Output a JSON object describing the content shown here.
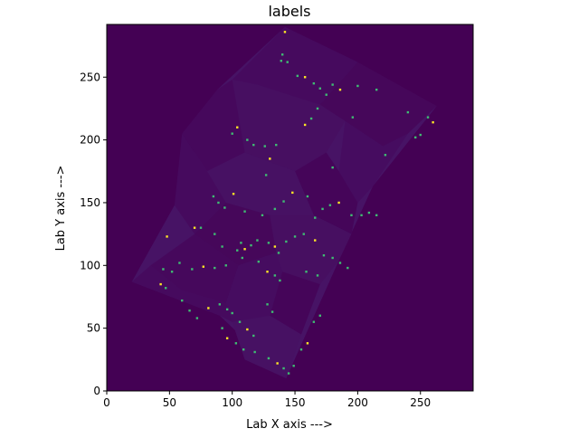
{
  "chart_data": {
    "type": "heatmap",
    "title": "labels",
    "xlabel": "Lab X axis --->",
    "ylabel": "Lab Y axis --->",
    "xlim": [
      0,
      292
    ],
    "ylim": [
      0,
      292
    ],
    "x_ticks": [
      0,
      50,
      100,
      150,
      200,
      250
    ],
    "y_ticks": [
      0,
      50,
      100,
      150,
      200,
      250
    ],
    "origin": "lower",
    "colormap": "viridis",
    "colors": {
      "background": "#440154",
      "grain_dark": "#46085c",
      "grain_mid": "#471365",
      "grain_light": "#482374",
      "boundary_bright": "#3fbc73",
      "boundary_brightest": "#fde725"
    },
    "sample_outline": [
      [
        142,
        290
      ],
      [
        263,
        227
      ],
      [
        212,
        163
      ],
      [
        185,
        104
      ],
      [
        143,
        10
      ],
      [
        90,
        60
      ],
      [
        20,
        87
      ],
      [
        54,
        148
      ],
      [
        88,
        240
      ]
    ],
    "grains": [
      {
        "label_value": 0.06,
        "polygon": [
          [
            142,
            290
          ],
          [
            200,
            262
          ],
          [
            170,
            228
          ],
          [
            120,
            244
          ],
          [
            100,
            248
          ]
        ]
      },
      {
        "label_value": 0.04,
        "polygon": [
          [
            200,
            262
          ],
          [
            263,
            227
          ],
          [
            240,
            205
          ],
          [
            220,
            195
          ],
          [
            190,
            215
          ],
          [
            170,
            228
          ]
        ]
      },
      {
        "label_value": 0.08,
        "polygon": [
          [
            120,
            244
          ],
          [
            170,
            228
          ],
          [
            190,
            215
          ],
          [
            175,
            190
          ],
          [
            150,
            175
          ],
          [
            110,
            190
          ],
          [
            100,
            248
          ]
        ]
      },
      {
        "label_value": 0.05,
        "polygon": [
          [
            100,
            248
          ],
          [
            110,
            190
          ],
          [
            80,
            175
          ],
          [
            60,
            205
          ],
          [
            88,
            240
          ]
        ]
      },
      {
        "label_value": 0.07,
        "polygon": [
          [
            220,
            195
          ],
          [
            240,
            205
          ],
          [
            212,
            163
          ],
          [
            200,
            150
          ],
          [
            185,
            175
          ],
          [
            190,
            215
          ]
        ]
      },
      {
        "label_value": 0.03,
        "polygon": [
          [
            185,
            175
          ],
          [
            200,
            150
          ],
          [
            195,
            125
          ],
          [
            165,
            140
          ],
          [
            150,
            175
          ],
          [
            175,
            190
          ]
        ]
      },
      {
        "label_value": 0.09,
        "polygon": [
          [
            110,
            190
          ],
          [
            150,
            175
          ],
          [
            165,
            140
          ],
          [
            130,
            140
          ],
          [
            95,
            150
          ],
          [
            80,
            175
          ]
        ]
      },
      {
        "label_value": 0.06,
        "polygon": [
          [
            80,
            175
          ],
          [
            95,
            150
          ],
          [
            70,
            125
          ],
          [
            54,
            148
          ],
          [
            60,
            205
          ]
        ]
      },
      {
        "label_value": 0.04,
        "polygon": [
          [
            95,
            150
          ],
          [
            130,
            140
          ],
          [
            135,
            110
          ],
          [
            105,
            100
          ],
          [
            70,
            125
          ]
        ]
      },
      {
        "label_value": 0.08,
        "polygon": [
          [
            130,
            140
          ],
          [
            165,
            140
          ],
          [
            195,
            125
          ],
          [
            185,
            104
          ],
          [
            170,
            85
          ],
          [
            140,
            95
          ],
          [
            135,
            110
          ]
        ]
      },
      {
        "label_value": 0.05,
        "polygon": [
          [
            70,
            125
          ],
          [
            105,
            100
          ],
          [
            95,
            70
          ],
          [
            60,
            80
          ],
          [
            35,
            100
          ]
        ]
      },
      {
        "label_value": 0.07,
        "polygon": [
          [
            105,
            100
          ],
          [
            135,
            110
          ],
          [
            140,
            95
          ],
          [
            130,
            60
          ],
          [
            100,
            55
          ],
          [
            95,
            70
          ]
        ]
      },
      {
        "label_value": 0.03,
        "polygon": [
          [
            140,
            95
          ],
          [
            170,
            85
          ],
          [
            155,
            45
          ],
          [
            130,
            60
          ]
        ]
      },
      {
        "label_value": 0.09,
        "polygon": [
          [
            130,
            60
          ],
          [
            155,
            45
          ],
          [
            143,
            10
          ],
          [
            110,
            25
          ],
          [
            100,
            55
          ]
        ]
      },
      {
        "label_value": 0.06,
        "polygon": [
          [
            60,
            80
          ],
          [
            95,
            70
          ],
          [
            100,
            55
          ],
          [
            90,
            60
          ],
          [
            20,
            87
          ],
          [
            35,
            100
          ]
        ]
      }
    ],
    "bright_pixels": [
      [
        142,
        286
      ],
      [
        140,
        268
      ],
      [
        139,
        263
      ],
      [
        144,
        262
      ],
      [
        152,
        251
      ],
      [
        158,
        250
      ],
      [
        165,
        245
      ],
      [
        170,
        241
      ],
      [
        175,
        236
      ],
      [
        180,
        244
      ],
      [
        186,
        240
      ],
      [
        200,
        243
      ],
      [
        215,
        240
      ],
      [
        240,
        222
      ],
      [
        256,
        218
      ],
      [
        260,
        214
      ],
      [
        250,
        204
      ],
      [
        246,
        202
      ],
      [
        222,
        188
      ],
      [
        180,
        178
      ],
      [
        158,
        212
      ],
      [
        163,
        217
      ],
      [
        168,
        225
      ],
      [
        196,
        218
      ],
      [
        100,
        205
      ],
      [
        104,
        210
      ],
      [
        112,
        200
      ],
      [
        117,
        196
      ],
      [
        126,
        195
      ],
      [
        135,
        196
      ],
      [
        130,
        185
      ],
      [
        127,
        172
      ],
      [
        85,
        155
      ],
      [
        89,
        150
      ],
      [
        94,
        146
      ],
      [
        101,
        157
      ],
      [
        110,
        143
      ],
      [
        124,
        140
      ],
      [
        134,
        145
      ],
      [
        141,
        151
      ],
      [
        148,
        158
      ],
      [
        160,
        155
      ],
      [
        166,
        138
      ],
      [
        172,
        145
      ],
      [
        178,
        148
      ],
      [
        185,
        150
      ],
      [
        195,
        140
      ],
      [
        203,
        140
      ],
      [
        209,
        142
      ],
      [
        215,
        140
      ],
      [
        70,
        130
      ],
      [
        75,
        130
      ],
      [
        86,
        125
      ],
      [
        92,
        115
      ],
      [
        104,
        112
      ],
      [
        110,
        113
      ],
      [
        115,
        116
      ],
      [
        107,
        118
      ],
      [
        120,
        120
      ],
      [
        129,
        118
      ],
      [
        134,
        115
      ],
      [
        137,
        110
      ],
      [
        143,
        119
      ],
      [
        150,
        123
      ],
      [
        157,
        125
      ],
      [
        166,
        120
      ],
      [
        173,
        108
      ],
      [
        180,
        106
      ],
      [
        186,
        102
      ],
      [
        192,
        98
      ],
      [
        48,
        123
      ],
      [
        45,
        97
      ],
      [
        52,
        95
      ],
      [
        58,
        102
      ],
      [
        68,
        97
      ],
      [
        77,
        99
      ],
      [
        86,
        98
      ],
      [
        95,
        100
      ],
      [
        108,
        106
      ],
      [
        121,
        103
      ],
      [
        128,
        95
      ],
      [
        134,
        92
      ],
      [
        138,
        88
      ],
      [
        159,
        95
      ],
      [
        168,
        92
      ],
      [
        43,
        85
      ],
      [
        47,
        82
      ],
      [
        60,
        72
      ],
      [
        66,
        64
      ],
      [
        72,
        58
      ],
      [
        81,
        66
      ],
      [
        90,
        69
      ],
      [
        96,
        65
      ],
      [
        100,
        62
      ],
      [
        106,
        55
      ],
      [
        112,
        49
      ],
      [
        117,
        44
      ],
      [
        128,
        69
      ],
      [
        132,
        63
      ],
      [
        92,
        50
      ],
      [
        96,
        42
      ],
      [
        103,
        38
      ],
      [
        109,
        33
      ],
      [
        118,
        31
      ],
      [
        129,
        26
      ],
      [
        136,
        22
      ],
      [
        141,
        18
      ],
      [
        145,
        14
      ],
      [
        149,
        20
      ],
      [
        155,
        33
      ],
      [
        160,
        38
      ],
      [
        165,
        55
      ],
      [
        170,
        60
      ]
    ]
  }
}
